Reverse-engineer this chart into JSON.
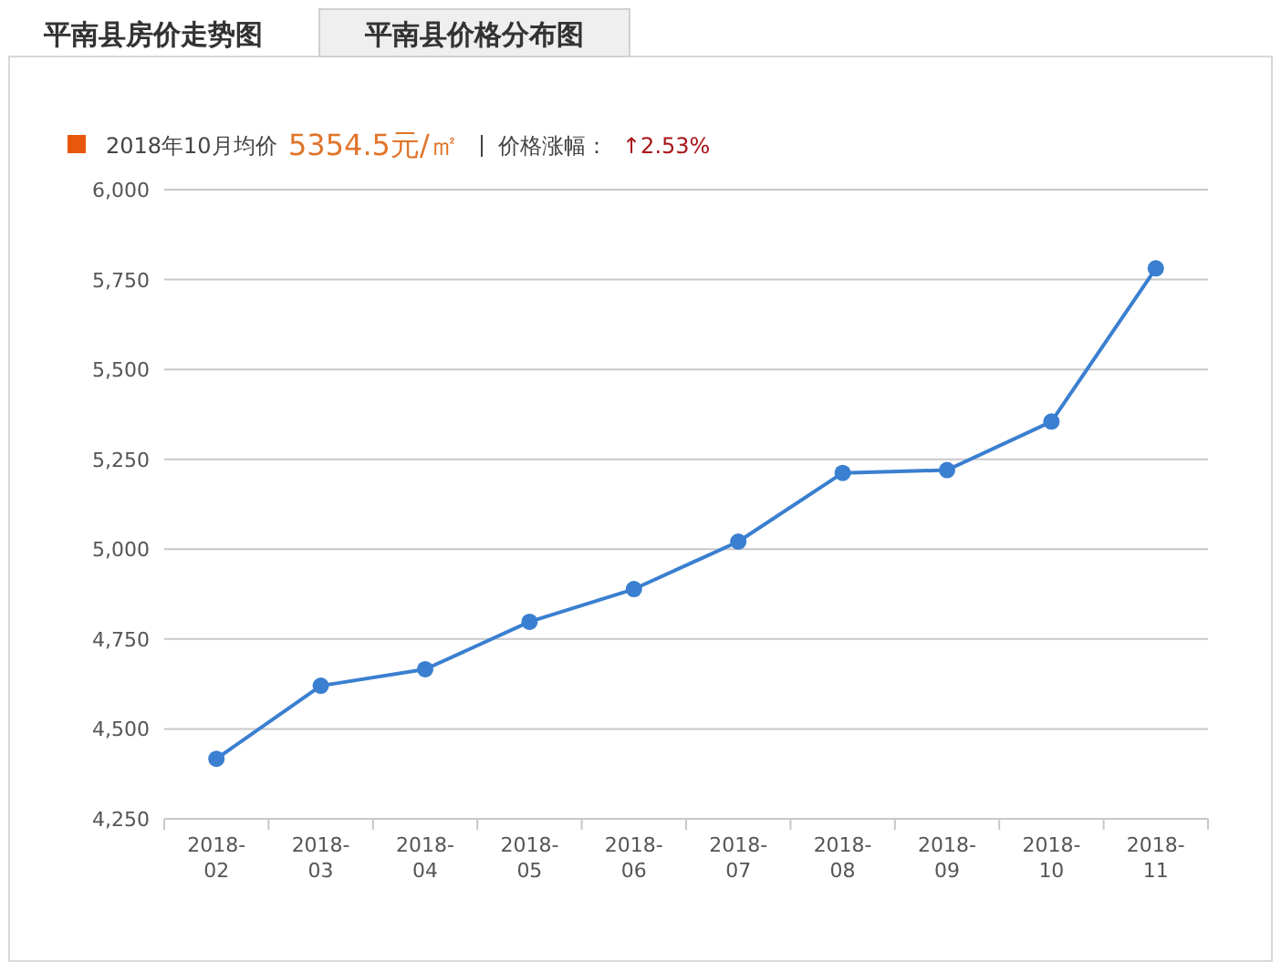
{
  "chart_data": {
    "type": "line",
    "title": "平南县房价走势图",
    "annotations": [
      "平南县价格分布图",
      "2018年10月均价",
      "5354.5元/㎡",
      "价格涨幅：",
      "↑2.53%"
    ],
    "categories": [
      "2018-\n02",
      "2018-\n03",
      "2018-\n04",
      "2018-\n05",
      "2018-\n06",
      "2018-\n07",
      "2018-\n08",
      "2018-\n09",
      "2018-\n10",
      "2018-\n11"
    ],
    "series": [
      {
        "color": "#3a7fd0",
        "values": [
          4417,
          4620,
          4666,
          4798,
          4889,
          5021,
          5212,
          5220,
          5355,
          5781
        ]
      }
    ],
    "ylim": [
      4250,
      6000
    ],
    "yticks": [
      {
        "value": 4250,
        "label": "4,250"
      },
      {
        "value": 4500,
        "label": "4,500"
      },
      {
        "value": 4750,
        "label": "4,750"
      },
      {
        "value": 5000,
        "label": "5,000"
      },
      {
        "value": 5250,
        "label": "5,250"
      },
      {
        "value": 5500,
        "label": "5,500"
      },
      {
        "value": 5750,
        "label": "5,750"
      },
      {
        "value": 6000,
        "label": "6,000"
      }
    ],
    "grid": "y",
    "marker": "circle",
    "line_style": "solid"
  }
}
